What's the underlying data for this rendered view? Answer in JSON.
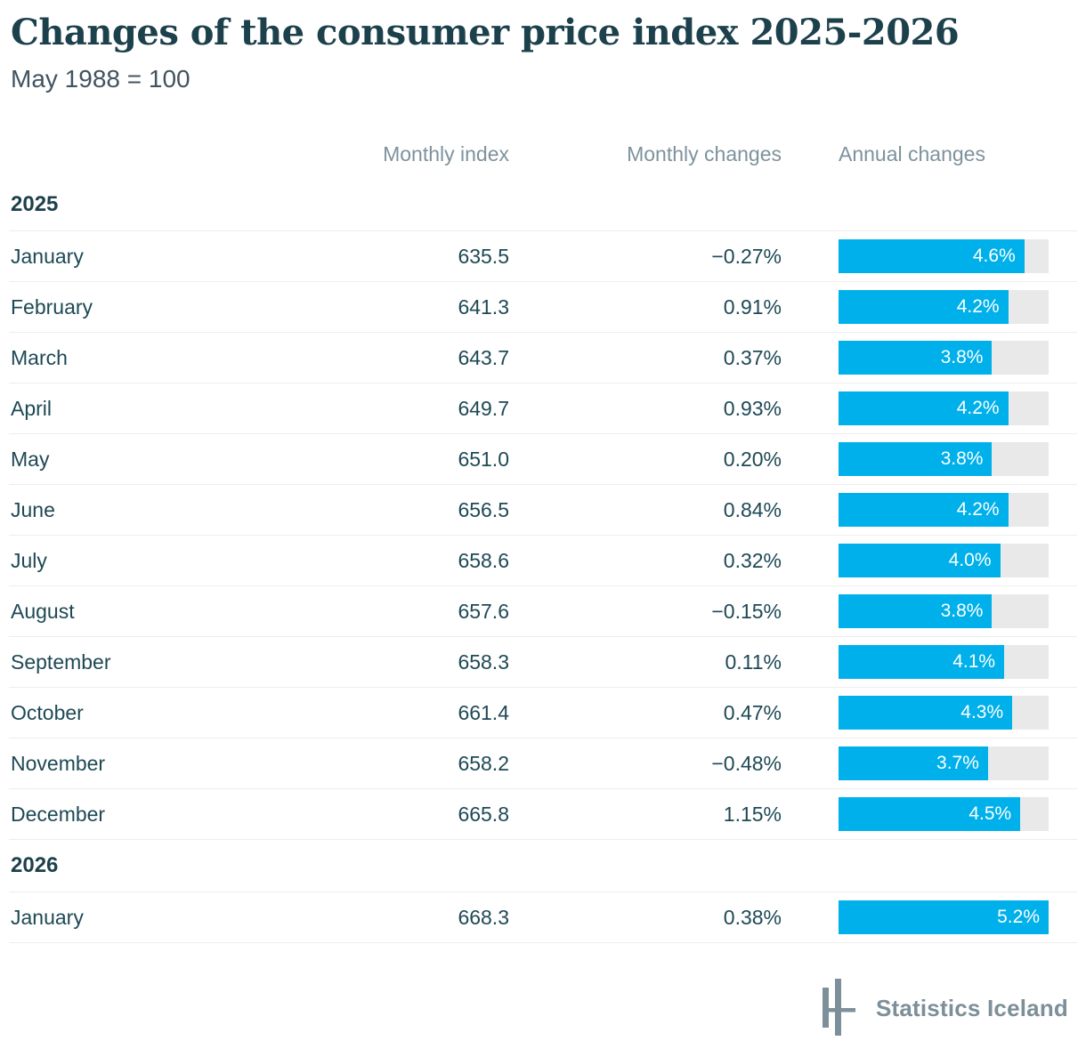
{
  "header": {
    "title": "Changes of the consumer price index 2025-2026",
    "subtitle": "May 1988 = 100"
  },
  "table": {
    "columns": [
      "Monthly index",
      "Monthly changes",
      "Annual changes"
    ],
    "bar_scale_max": 5.2,
    "sections": [
      {
        "year": "2025",
        "rows": [
          {
            "month": "January",
            "index": "635.5",
            "monthly_change": "−0.27%",
            "annual_value": 4.6,
            "annual_label": "4.6%"
          },
          {
            "month": "February",
            "index": "641.3",
            "monthly_change": "0.91%",
            "annual_value": 4.2,
            "annual_label": "4.2%"
          },
          {
            "month": "March",
            "index": "643.7",
            "monthly_change": "0.37%",
            "annual_value": 3.8,
            "annual_label": "3.8%"
          },
          {
            "month": "April",
            "index": "649.7",
            "monthly_change": "0.93%",
            "annual_value": 4.2,
            "annual_label": "4.2%"
          },
          {
            "month": "May",
            "index": "651.0",
            "monthly_change": "0.20%",
            "annual_value": 3.8,
            "annual_label": "3.8%"
          },
          {
            "month": "June",
            "index": "656.5",
            "monthly_change": "0.84%",
            "annual_value": 4.2,
            "annual_label": "4.2%"
          },
          {
            "month": "July",
            "index": "658.6",
            "monthly_change": "0.32%",
            "annual_value": 4.0,
            "annual_label": "4.0%"
          },
          {
            "month": "August",
            "index": "657.6",
            "monthly_change": "−0.15%",
            "annual_value": 3.8,
            "annual_label": "3.8%"
          },
          {
            "month": "September",
            "index": "658.3",
            "monthly_change": "0.11%",
            "annual_value": 4.1,
            "annual_label": "4.1%"
          },
          {
            "month": "October",
            "index": "661.4",
            "monthly_change": "0.47%",
            "annual_value": 4.3,
            "annual_label": "4.3%"
          },
          {
            "month": "November",
            "index": "658.2",
            "monthly_change": "−0.48%",
            "annual_value": 3.7,
            "annual_label": "3.7%"
          },
          {
            "month": "December",
            "index": "665.8",
            "monthly_change": "1.15%",
            "annual_value": 4.5,
            "annual_label": "4.5%"
          }
        ]
      },
      {
        "year": "2026",
        "rows": [
          {
            "month": "January",
            "index": "668.3",
            "monthly_change": "0.38%",
            "annual_value": 5.2,
            "annual_label": "5.2%"
          }
        ]
      }
    ]
  },
  "footer": {
    "brand": "Statistics Iceland"
  },
  "colors": {
    "accent": "#00b0ea",
    "bar_track": "#e9e9e9",
    "text_dark": "#1d414c",
    "text_muted": "#7e929d",
    "divider": "#ededed"
  },
  "chart_data": {
    "type": "bar",
    "title": "Changes of the consumer price index 2025-2026",
    "subtitle": "May 1988 = 100",
    "orientation": "horizontal",
    "bar_series_name": "Annual changes",
    "xlim": [
      0,
      5.2
    ],
    "grid": false,
    "legend": "none",
    "categories": [
      "2025 January",
      "2025 February",
      "2025 March",
      "2025 April",
      "2025 May",
      "2025 June",
      "2025 July",
      "2025 August",
      "2025 September",
      "2025 October",
      "2025 November",
      "2025 December",
      "2026 January"
    ],
    "series": [
      {
        "name": "Monthly index",
        "values": [
          635.5,
          641.3,
          643.7,
          649.7,
          651.0,
          656.5,
          658.6,
          657.6,
          658.3,
          661.4,
          658.2,
          665.8,
          668.3
        ]
      },
      {
        "name": "Monthly changes (%)",
        "values": [
          -0.27,
          0.91,
          0.37,
          0.93,
          0.2,
          0.84,
          0.32,
          -0.15,
          0.11,
          0.47,
          -0.48,
          1.15,
          0.38
        ]
      },
      {
        "name": "Annual changes (%)",
        "values": [
          4.6,
          4.2,
          3.8,
          4.2,
          3.8,
          4.2,
          4.0,
          3.8,
          4.1,
          4.3,
          3.7,
          4.5,
          5.2
        ]
      }
    ]
  }
}
